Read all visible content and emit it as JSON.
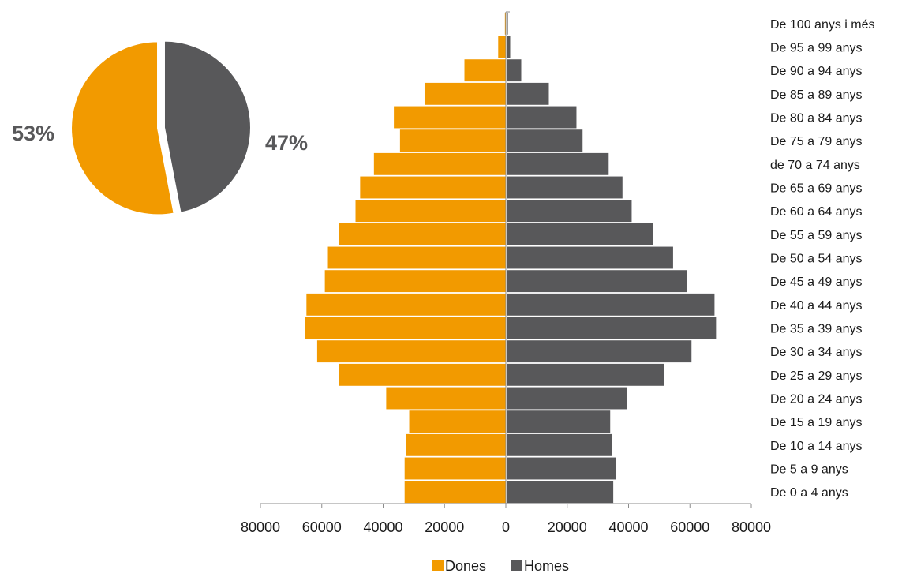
{
  "colors": {
    "women": "#f29a00",
    "men": "#58585a",
    "axis": "#8c8c8c",
    "text": "#1a1a1a",
    "pie_label": "#58585a"
  },
  "chart_data": [
    {
      "type": "bar",
      "subtype": "population-pyramid",
      "categories": [
        "De 0 a 4 anys",
        "De 5 a 9 anys",
        "De 10 a 14 anys",
        "De 15 a 19 anys",
        "De 20 a 24 anys",
        "De 25 a 29 anys",
        "De 30 a 34 anys",
        "De 35 a 39 anys",
        "De 40 a 44 anys",
        "De 45 a 49 anys",
        "De 50 a 54 anys",
        "De 55 a 59 anys",
        "De 60 a 64 anys",
        "De 65 a 69 anys",
        "de 70 a 74 anys",
        "De 75 a 79 anys",
        "De 80 a 84 anys",
        "De 85 a 89 anys",
        "De 90 a 94 anys",
        "De 95 a 99 anys",
        "De 100 anys i més"
      ],
      "series": [
        {
          "name": "Dones",
          "color_key": "women",
          "values": [
            33000,
            33000,
            32500,
            31500,
            39000,
            54500,
            61500,
            65500,
            65000,
            59000,
            58000,
            54500,
            49000,
            47500,
            43000,
            34500,
            36500,
            26500,
            13500,
            2500,
            300
          ]
        },
        {
          "name": "Homes",
          "color_key": "men",
          "values": [
            34500,
            35500,
            34000,
            33500,
            39000,
            51000,
            60000,
            68000,
            67500,
            58500,
            54000,
            47500,
            40500,
            37500,
            33000,
            24500,
            22500,
            13500,
            4500,
            900,
            150
          ]
        }
      ],
      "xlim": [
        -80000,
        80000
      ],
      "xticks": [
        "80000",
        "60000",
        "40000",
        "20000",
        "0",
        "20000",
        "40000",
        "60000",
        "80000"
      ],
      "xtick_values": [
        -80000,
        -60000,
        -40000,
        -20000,
        0,
        20000,
        40000,
        60000,
        80000
      ],
      "legend": [
        "Dones",
        "Homes"
      ],
      "legend_position": "bottom",
      "category_labels_position": "right",
      "grid": false
    },
    {
      "type": "pie",
      "labels": [
        "53%",
        "47%"
      ],
      "values": [
        53,
        47
      ],
      "color_keys": [
        "women",
        "men"
      ]
    }
  ]
}
